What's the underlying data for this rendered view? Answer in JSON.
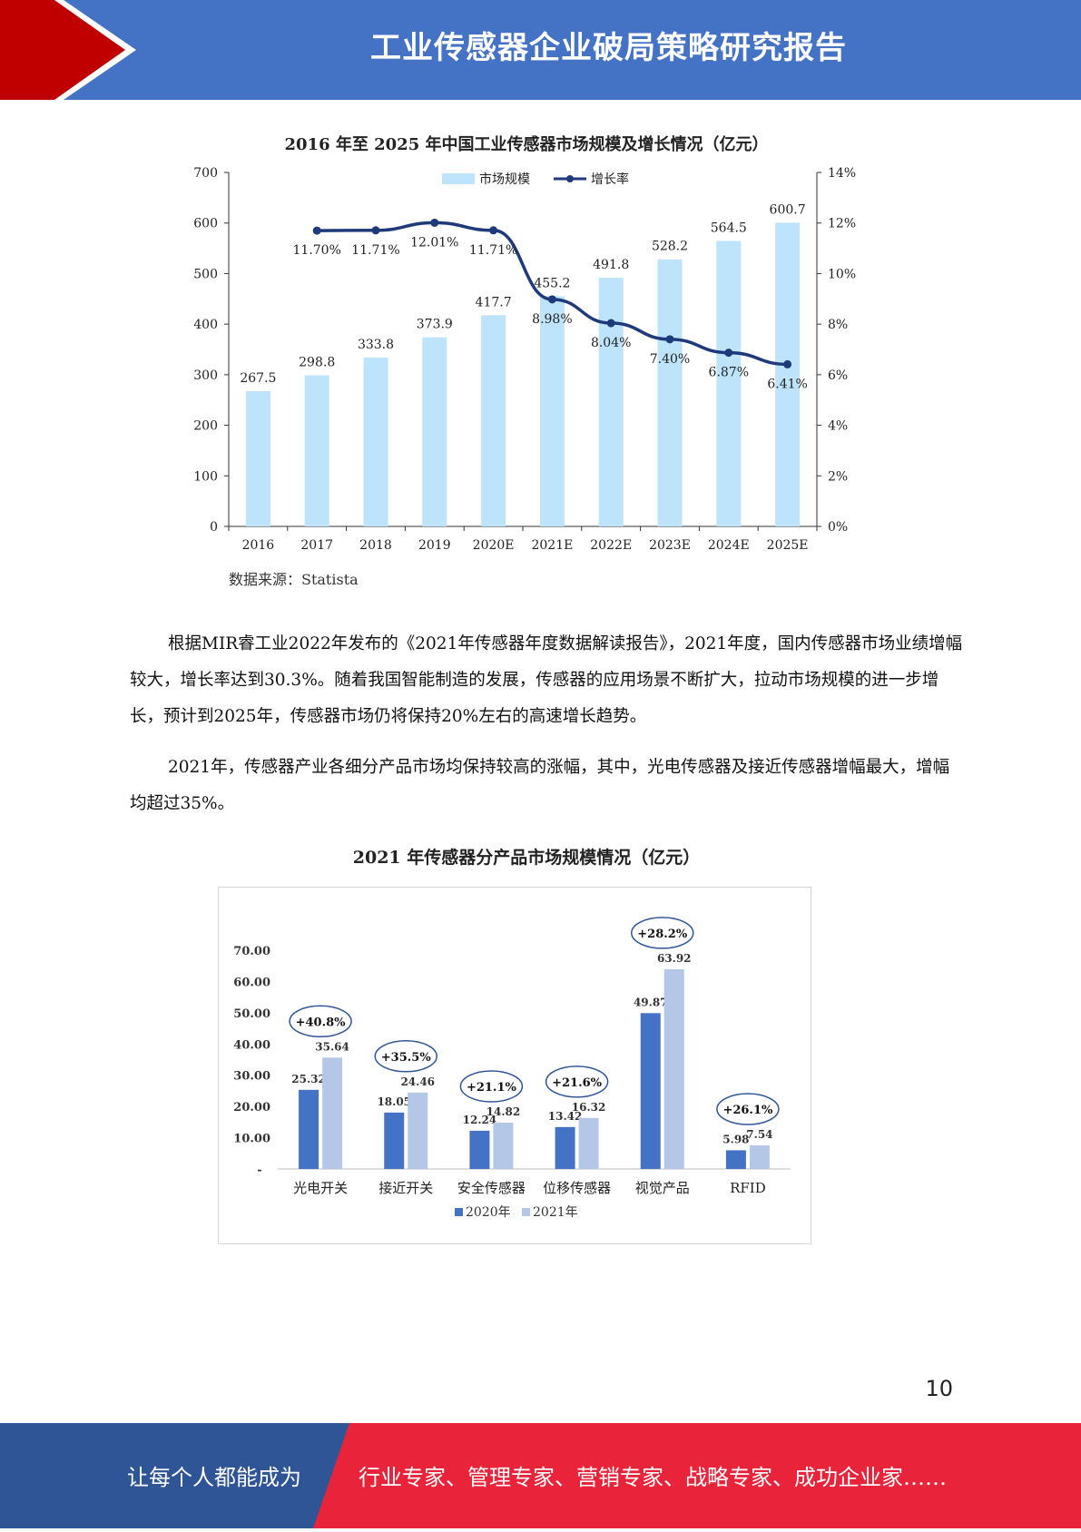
{
  "header": {
    "title": "工业传感器企业破局策略研究报告",
    "colors": {
      "bar": "#4472c4",
      "accent": "#c00000"
    }
  },
  "chart1": {
    "chart_data": {
      "type": "bar",
      "title": "2016 年至 2025 年中国工业传感器市场规模及增长情况（亿元）",
      "categories": [
        "2016",
        "2017",
        "2018",
        "2019",
        "2020E",
        "2021E",
        "2022E",
        "2023E",
        "2024E",
        "2025E"
      ],
      "series": [
        {
          "name": "市场规模",
          "kind": "bar",
          "axis": "left",
          "color": "#bde4fb",
          "values": [
            267.5,
            298.8,
            333.8,
            373.9,
            417.7,
            455.2,
            491.8,
            528.2,
            564.5,
            600.7
          ],
          "labels": [
            "267.5",
            "298.8",
            "333.8",
            "373.9",
            "417.7",
            "455.2",
            "491.8",
            "528.2",
            "564.5",
            "600.7"
          ]
        },
        {
          "name": "增长率",
          "kind": "line",
          "axis": "right",
          "color": "#1f3a7a",
          "values": [
            null,
            11.7,
            11.71,
            12.01,
            11.71,
            8.98,
            8.04,
            7.4,
            6.87,
            6.41
          ],
          "labels": [
            "",
            "11.70%",
            "11.71%",
            "12.01%",
            "11.71%",
            "8.98%",
            "8.04%",
            "7.40%",
            "6.87%",
            "6.41%"
          ]
        }
      ],
      "y_left": {
        "range": [
          0,
          700
        ],
        "ticks": [
          "0",
          "100",
          "200",
          "300",
          "400",
          "500",
          "600",
          "700"
        ]
      },
      "y_right": {
        "range": [
          0,
          14
        ],
        "ticks": [
          "0%",
          "2%",
          "4%",
          "6%",
          "8%",
          "10%",
          "12%",
          "14%"
        ]
      },
      "legend": "top-center",
      "grid": false
    },
    "source": "数据来源：Statista"
  },
  "paragraphs": [
    "根据MIR睿工业2022年发布的《2021年传感器年度数据解读报告》，2021年度，国内传感器市场业绩增幅较大，增长率达到30.3%。随着我国智能制造的发展，传感器的应用场景不断扩大，拉动市场规模的进一步增长，预计到2025年，传感器市场仍将保持20%左右的高速增长趋势。",
    "2021年，传感器产业各细分产品市场均保持较高的涨幅，其中，光电传感器及接近传感器增幅最大，增幅均超过35%。"
  ],
  "chart2": {
    "chart_data": {
      "type": "bar",
      "title": "2021 年传感器分产品市场规模情况（亿元）",
      "categories": [
        "光电开关",
        "接近开关",
        "安全传感器",
        "位移传感器",
        "视觉产品",
        "RFID"
      ],
      "series": [
        {
          "name": "2020年",
          "color": "#4472c4",
          "values": [
            25.32,
            18.05,
            12.24,
            13.42,
            49.87,
            5.98
          ],
          "labels": [
            "25.32",
            "18.05",
            "12.24",
            "13.42",
            "49.87",
            "5.98"
          ]
        },
        {
          "name": "2021年",
          "color": "#b4c7e7",
          "values": [
            35.64,
            24.46,
            14.82,
            16.32,
            63.92,
            7.54
          ],
          "labels": [
            "35.64",
            "24.46",
            "14.82",
            "16.32",
            "63.92",
            "7.54"
          ]
        }
      ],
      "annotations": [
        "+40.8%",
        "+35.5%",
        "+21.1%",
        "+21.6%",
        "+28.2%",
        "+26.1%"
      ],
      "y": {
        "range": [
          0,
          70
        ],
        "ticks": [
          "-",
          "10.00",
          "20.00",
          "30.00",
          "40.00",
          "50.00",
          "60.00",
          "70.00"
        ]
      },
      "legend": "bottom-center",
      "grid": false
    }
  },
  "page_number": "10",
  "footer": {
    "left": "让每个人都能成为",
    "right": "行业专家、管理专家、营销专家、战略专家、成功企业家……",
    "colors": {
      "left": "#2f5597",
      "right": "#e8233a"
    }
  }
}
